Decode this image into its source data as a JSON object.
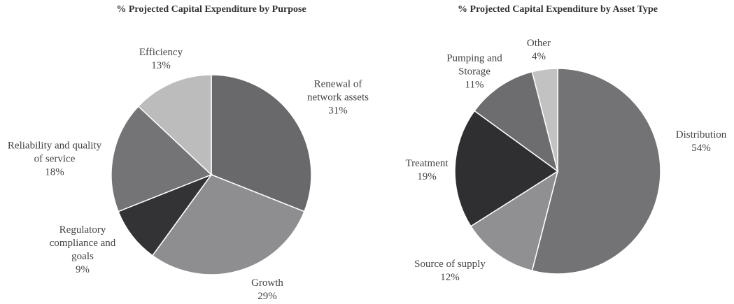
{
  "chart_data": [
    {
      "type": "pie",
      "title": "% Projected Capital Expenditure by Purpose",
      "categories": [
        "Renewal of network assets",
        "Growth",
        "Regulatory compliance and goals",
        "Reliability and quality of service",
        "Efficiency"
      ],
      "values": [
        31,
        29,
        9,
        18,
        13
      ],
      "value_labels": [
        "31%",
        "29%",
        "9%",
        "18%",
        "13%"
      ],
      "colors": [
        "#69696b",
        "#8e8e90",
        "#333335",
        "#747476",
        "#bcbcbc"
      ]
    },
    {
      "type": "pie",
      "title": "% Projected Capital Expenditure by Asset Type",
      "categories": [
        "Distribution",
        "Source of supply",
        "Treatment",
        "Pumping and Storage",
        "Other"
      ],
      "values": [
        54,
        12,
        19,
        11,
        4
      ],
      "value_labels": [
        "54%",
        "12%",
        "19%",
        "11%",
        "4%"
      ],
      "colors": [
        "#737375",
        "#909092",
        "#2f2f31",
        "#6d6d6f",
        "#c2c2c2"
      ]
    }
  ]
}
